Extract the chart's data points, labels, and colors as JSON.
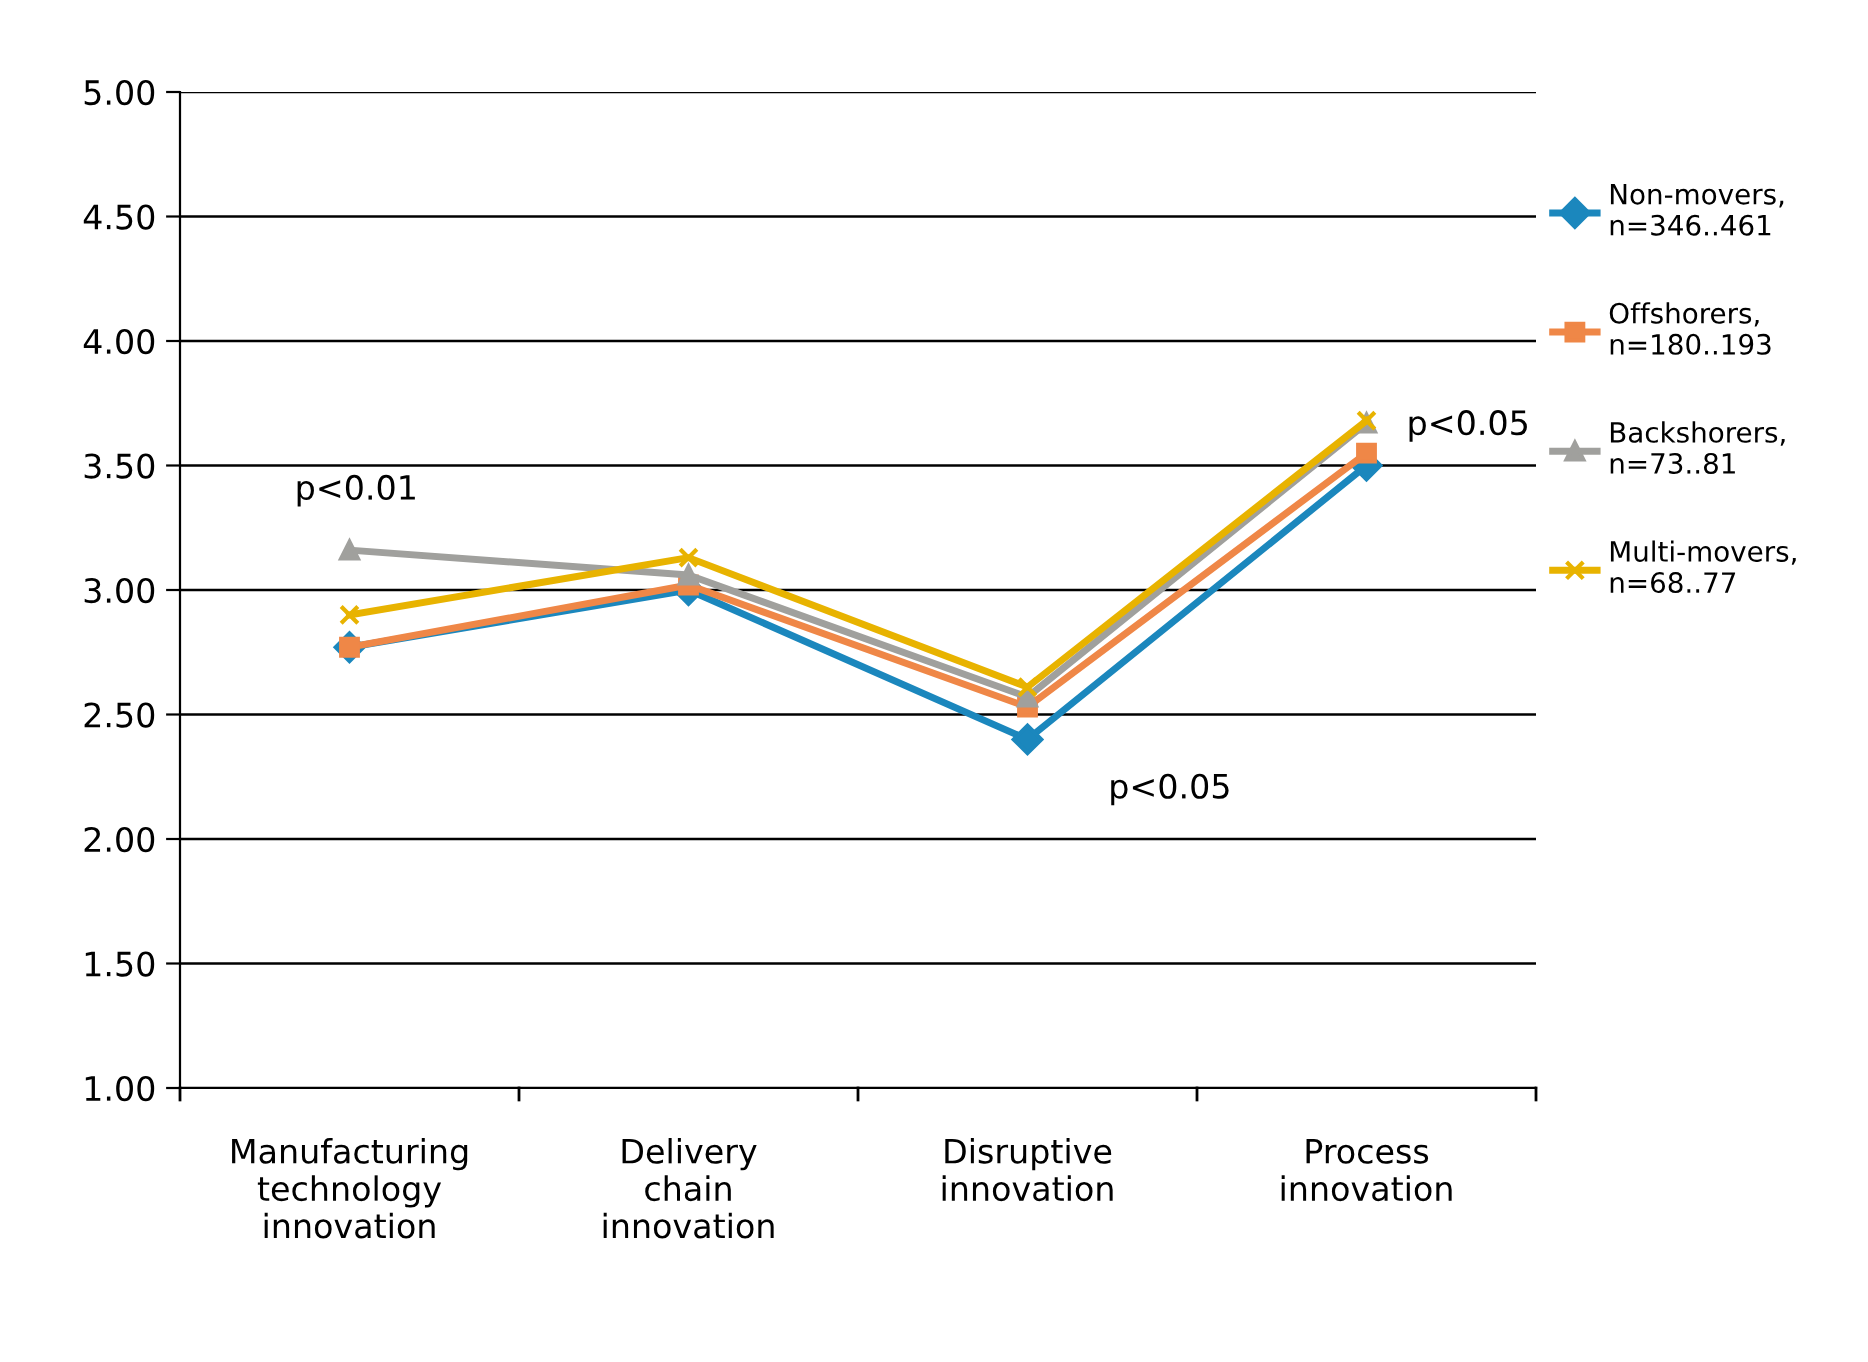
{
  "chart_data": {
    "type": "line",
    "categories": [
      "Manufacturing\ntechnology\ninnovation",
      "Delivery\nchain\ninnovation",
      "Disruptive\ninnovation",
      "Process\ninnovation"
    ],
    "series": [
      {
        "name": "Non-movers,\nn=346..461",
        "color": "#1b87bd",
        "marker": "diamond",
        "values": [
          2.77,
          3.0,
          2.4,
          3.5
        ]
      },
      {
        "name": "Offshorers,\nn=180..193",
        "color": "#ef8747",
        "marker": "square",
        "values": [
          2.77,
          3.02,
          2.53,
          3.55
        ]
      },
      {
        "name": "Backshorers,\nn=73..81",
        "color": "#a0a09d",
        "marker": "triangle",
        "values": [
          3.16,
          3.06,
          2.57,
          3.67
        ]
      },
      {
        "name": "Multi-movers,\nn=68..77",
        "color": "#e8b300",
        "marker": "cross",
        "values": [
          2.9,
          3.13,
          2.61,
          3.68
        ]
      }
    ],
    "ylim": [
      1.0,
      5.0
    ],
    "yticks": [
      {
        "value": 1.0,
        "label": "1.00"
      },
      {
        "value": 1.5,
        "label": "1.50"
      },
      {
        "value": 2.0,
        "label": "2.00"
      },
      {
        "value": 2.5,
        "label": "2.50"
      },
      {
        "value": 3.0,
        "label": "3.00"
      },
      {
        "value": 3.5,
        "label": "3.50"
      },
      {
        "value": 4.0,
        "label": "4.00"
      },
      {
        "value": 4.5,
        "label": "4.50"
      },
      {
        "value": 5.0,
        "label": "5.00"
      }
    ],
    "grid": "y",
    "legend": "right",
    "line_style": "solid",
    "annotations": [
      "p<0.01",
      "p<0.05",
      "p<0.05"
    ]
  }
}
